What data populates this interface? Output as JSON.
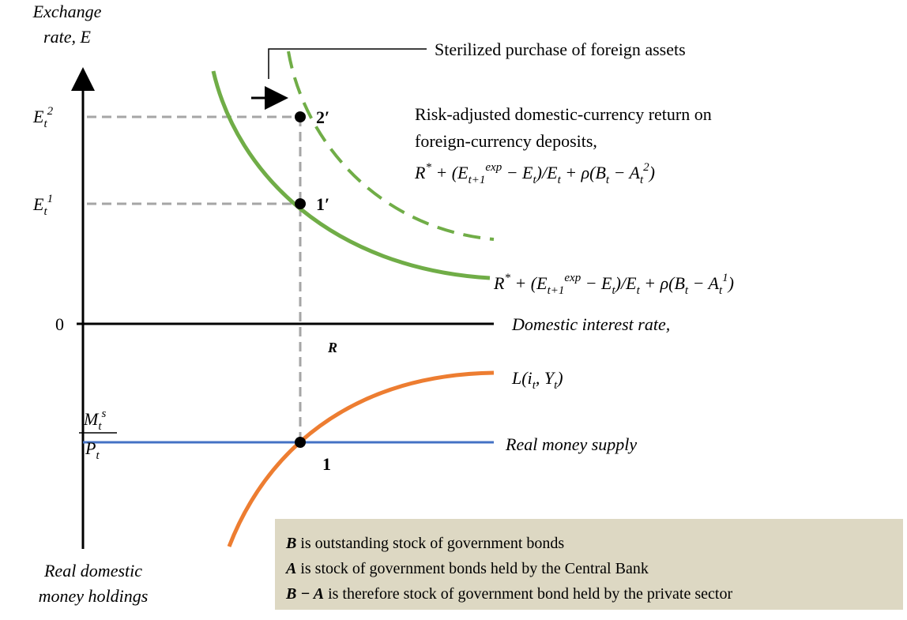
{
  "y_axis_label": [
    "Exchange",
    "rate, E"
  ],
  "bottom_axis_label": [
    "Real domestic",
    "money holdings"
  ],
  "x_axis_label": "Domestic interest rate,",
  "origin_label": "0",
  "rate_marker": "R",
  "e2_tick": [
    {
      "t": "E",
      "sub": "t",
      "sup": "2"
    }
  ],
  "e1_tick": [
    {
      "t": "E",
      "sub": "t",
      "sup": "1"
    }
  ],
  "money_tick": {
    "numerator": [
      {
        "t": "M",
        "sub": "t",
        "sup": "s"
      }
    ],
    "denominator": [
      {
        "t": "P",
        "sub": "t"
      }
    ]
  },
  "points": {
    "two_prime": "2′",
    "one_prime": "1′",
    "one": "1"
  },
  "shift_annotation": "Sterilized purchase of foreign assets",
  "new_curve_caption": [
    "Risk-adjusted domestic-currency return on",
    "foreign-currency deposits,"
  ],
  "new_curve_formula": [
    {
      "t": "R",
      "sup": "*"
    },
    {
      "t": " + (E",
      "sub": "t+1",
      "sup": "exp"
    },
    {
      "t": " − E",
      "sub": "t"
    },
    {
      "t": ")/E",
      "sub": "t"
    },
    {
      "t": " + ρ(B",
      "sub": "t"
    },
    {
      "t": " − A",
      "sub": "t",
      "sup": "2"
    },
    {
      "t": ")"
    }
  ],
  "old_curve_formula": [
    {
      "t": "R",
      "sup": "*"
    },
    {
      "t": " + (E",
      "sub": "t+1",
      "sup": "exp"
    },
    {
      "t": " − E",
      "sub": "t"
    },
    {
      "t": ")/E",
      "sub": "t"
    },
    {
      "t": " + ρ(B",
      "sub": "t"
    },
    {
      "t": " − A",
      "sub": "t",
      "sup": "1"
    },
    {
      "t": ")"
    }
  ],
  "money_demand_label": [
    {
      "t": "L(i",
      "sub": "t"
    },
    {
      "t": ", Y",
      "sub": "t"
    },
    {
      "t": ")"
    }
  ],
  "money_supply_label": "Real money supply",
  "note": [
    {
      "bold": "B",
      "text": " is outstanding stock of government bonds"
    },
    {
      "bold": "A",
      "text": " is stock of government bonds held by the Central Bank"
    },
    {
      "bold": "B − A",
      "text": " is therefore stock of government bond held by the private sector"
    }
  ]
}
